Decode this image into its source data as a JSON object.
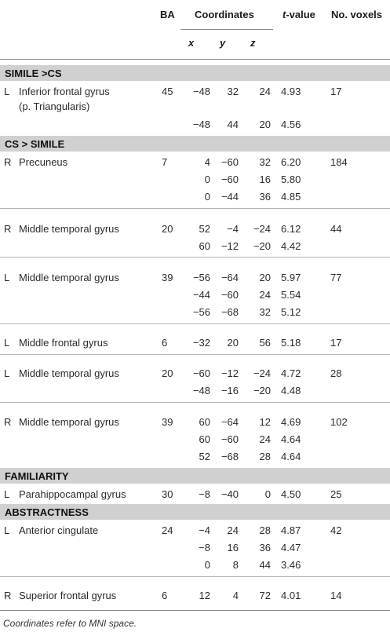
{
  "header": {
    "ba": "BA",
    "coordinates": "Coordinates",
    "t_value": "-value",
    "t_italic": "t",
    "voxels": "No. voxels",
    "x": "x",
    "y": "y",
    "z": "z"
  },
  "sections": [
    {
      "title": "SIMILE >CS",
      "rows": [
        {
          "side": "L",
          "region": "Inferior frontal gyrus",
          "region2": "(p. Triangularis)",
          "ba": "45",
          "x": "−48",
          "y": "32",
          "z": "24",
          "t": "4.93",
          "vox": "17"
        },
        {
          "side": "",
          "region": "",
          "ba": "",
          "x": "−48",
          "y": "44",
          "z": "20",
          "t": "4.56",
          "vox": ""
        }
      ]
    },
    {
      "title": "CS > SIMILE",
      "rows": [
        {
          "side": "R",
          "region": "Precuneus",
          "ba": "7",
          "x": "4",
          "y": "−60",
          "z": "32",
          "t": "6.20",
          "vox": "184"
        },
        {
          "side": "",
          "region": "",
          "ba": "",
          "x": "0",
          "y": "−60",
          "z": "16",
          "t": "5.80",
          "vox": ""
        },
        {
          "side": "",
          "region": "",
          "ba": "",
          "x": "0",
          "y": "−44",
          "z": "36",
          "t": "4.85",
          "vox": ""
        },
        {
          "side": "R",
          "region": "Middle temporal gyrus",
          "ba": "20",
          "x": "52",
          "y": "−4",
          "z": "−24",
          "t": "6.12",
          "vox": "44"
        },
        {
          "side": "",
          "region": "",
          "ba": "",
          "x": "60",
          "y": "−12",
          "z": "−20",
          "t": "4.42",
          "vox": ""
        },
        {
          "side": "L",
          "region": "Middle temporal gyrus",
          "ba": "39",
          "x": "−56",
          "y": "−64",
          "z": "20",
          "t": "5.97",
          "vox": "77"
        },
        {
          "side": "",
          "region": "",
          "ba": "",
          "x": "−44",
          "y": "−60",
          "z": "24",
          "t": "5.54",
          "vox": ""
        },
        {
          "side": "",
          "region": "",
          "ba": "",
          "x": "−56",
          "y": "−68",
          "z": "32",
          "t": "5.12",
          "vox": ""
        },
        {
          "side": "L",
          "region": "Middle frontal gyrus",
          "ba": "6",
          "x": "−32",
          "y": "20",
          "z": "56",
          "t": "5.18",
          "vox": "17"
        },
        {
          "side": "L",
          "region": "Middle temporal gyrus",
          "ba": "20",
          "x": "−60",
          "y": "−12",
          "z": "−24",
          "t": "4.72",
          "vox": "28"
        },
        {
          "side": "",
          "region": "",
          "ba": "",
          "x": "−48",
          "y": "−16",
          "z": "−20",
          "t": "4.48",
          "vox": ""
        },
        {
          "side": "R",
          "region": "Middle temporal gyrus",
          "ba": "39",
          "x": "60",
          "y": "−64",
          "z": "12",
          "t": "4.69",
          "vox": "102"
        },
        {
          "side": "",
          "region": "",
          "ba": "",
          "x": "60",
          "y": "−60",
          "z": "24",
          "t": "4.64",
          "vox": ""
        },
        {
          "side": "",
          "region": "",
          "ba": "",
          "x": "52",
          "y": "−68",
          "z": "28",
          "t": "4.64",
          "vox": ""
        }
      ]
    },
    {
      "title": "FAMILIARITY",
      "rows": [
        {
          "side": "L",
          "region": "Parahippocampal gyrus",
          "ba": "30",
          "x": "−8",
          "y": "−40",
          "z": "0",
          "t": "4.50",
          "vox": "25"
        }
      ]
    },
    {
      "title": "ABSTRACTNESS",
      "rows": [
        {
          "side": "L",
          "region": "Anterior cingulate",
          "ba": "24",
          "x": "−4",
          "y": "24",
          "z": "28",
          "t": "4.87",
          "vox": "42"
        },
        {
          "side": "",
          "region": "",
          "ba": "",
          "x": "−8",
          "y": "16",
          "z": "36",
          "t": "4.47",
          "vox": ""
        },
        {
          "side": "",
          "region": "",
          "ba": "",
          "x": "0",
          "y": "8",
          "z": "44",
          "t": "3.46",
          "vox": ""
        },
        {
          "side": "R",
          "region": "Superior frontal gyrus",
          "ba": "6",
          "x": "12",
          "y": "4",
          "z": "72",
          "t": "4.01",
          "vox": "14"
        }
      ]
    }
  ],
  "footnote": "Coordinates refer to MNI space."
}
